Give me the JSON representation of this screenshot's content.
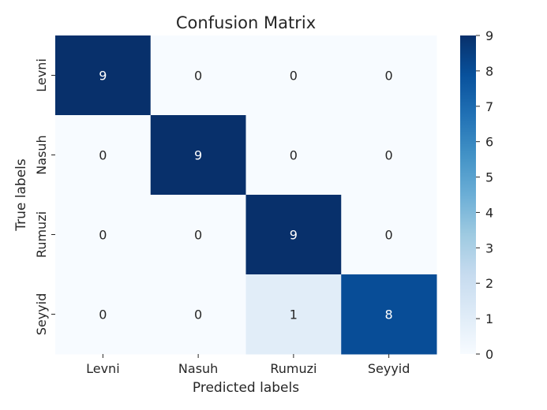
{
  "chart_data": {
    "type": "heatmap",
    "title": "Confusion Matrix",
    "xlabel": "Predicted labels",
    "ylabel": "True labels",
    "x_categories": [
      "Levni",
      "Nasuh",
      "Rumuzi",
      "Seyyid"
    ],
    "y_categories": [
      "Levni",
      "Nasuh",
      "Rumuzi",
      "Seyyid"
    ],
    "values": [
      [
        9,
        0,
        0,
        0
      ],
      [
        0,
        9,
        0,
        0
      ],
      [
        0,
        0,
        9,
        0
      ],
      [
        0,
        0,
        1,
        8
      ]
    ],
    "colorbar": {
      "min": 0,
      "max": 9,
      "ticks": [
        0,
        1,
        2,
        3,
        4,
        5,
        6,
        7,
        8,
        9
      ],
      "colormap": "Blues",
      "low_color": "#f7fbff",
      "high_color": "#08306b"
    },
    "annotation_colors": {
      "dark_text": "#262626",
      "light_text": "#ffffff"
    }
  }
}
